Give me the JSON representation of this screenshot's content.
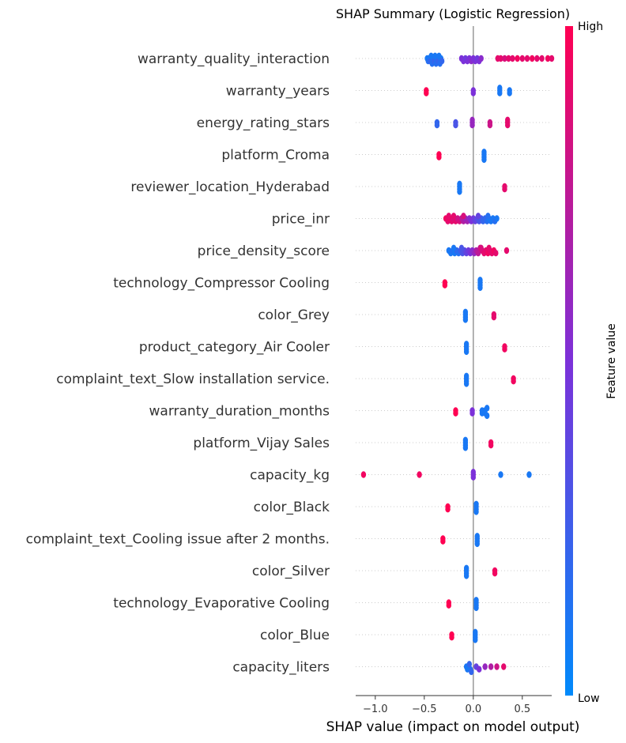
{
  "chart_data": {
    "type": "scatter",
    "title": "SHAP Summary (Logistic Regression)",
    "xlabel": "SHAP value (impact on model output)",
    "xlim": [
      -1.2,
      0.8
    ],
    "xticks": [
      "−1.0",
      "−0.5",
      "0.0",
      "0.5"
    ],
    "xtick_values": [
      -1.0,
      -0.5,
      0.0,
      0.5
    ],
    "colorbar": {
      "label": "Feature value",
      "high": "High",
      "low": "Low",
      "low_color": "#008afb",
      "mid_color": "#7c31d9",
      "high_color": "#ff0052"
    },
    "features": [
      {
        "name": "warranty_quality_interaction",
        "points": [
          [
            -0.47,
            0.1
          ],
          [
            -0.46,
            0.15
          ],
          [
            -0.45,
            0.1
          ],
          [
            -0.44,
            0.2
          ],
          [
            -0.43,
            0.1
          ],
          [
            -0.42,
            0.15
          ],
          [
            -0.41,
            0.1
          ],
          [
            -0.4,
            0.2
          ],
          [
            -0.39,
            0.1
          ],
          [
            -0.38,
            0.15
          ],
          [
            -0.37,
            0.1
          ],
          [
            -0.36,
            0.2
          ],
          [
            -0.35,
            0.1
          ],
          [
            -0.34,
            0.15
          ],
          [
            -0.33,
            0.1
          ],
          [
            -0.32,
            0.2
          ],
          [
            -0.12,
            0.5
          ],
          [
            -0.1,
            0.5
          ],
          [
            -0.08,
            0.45
          ],
          [
            -0.06,
            0.5
          ],
          [
            -0.04,
            0.5
          ],
          [
            -0.02,
            0.55
          ],
          [
            0.0,
            0.5
          ],
          [
            0.02,
            0.5
          ],
          [
            0.04,
            0.45
          ],
          [
            0.06,
            0.5
          ],
          [
            0.08,
            0.55
          ],
          [
            0.25,
            0.9
          ],
          [
            0.28,
            0.9
          ],
          [
            0.32,
            0.85
          ],
          [
            0.36,
            0.9
          ],
          [
            0.4,
            0.9
          ],
          [
            0.45,
            0.95
          ],
          [
            0.5,
            0.9
          ],
          [
            0.55,
            0.9
          ],
          [
            0.6,
            0.95
          ],
          [
            0.65,
            0.9
          ],
          [
            0.7,
            0.9
          ],
          [
            0.76,
            0.95
          ],
          [
            0.8,
            0.9
          ]
        ]
      },
      {
        "name": "warranty_years",
        "points": [
          [
            -0.48,
            1.0
          ],
          [
            -0.48,
            1.0
          ],
          [
            0.0,
            0.5
          ],
          [
            0.0,
            0.5
          ],
          [
            0.27,
            0.1
          ],
          [
            0.27,
            0.1
          ],
          [
            0.27,
            0.1
          ],
          [
            0.37,
            0.1
          ],
          [
            0.37,
            0.1
          ]
        ]
      },
      {
        "name": "energy_rating_stars",
        "points": [
          [
            -0.37,
            0.2
          ],
          [
            -0.37,
            0.2
          ],
          [
            -0.18,
            0.3
          ],
          [
            -0.18,
            0.3
          ],
          [
            -0.01,
            0.6
          ],
          [
            -0.01,
            0.6
          ],
          [
            -0.01,
            0.6
          ],
          [
            0.17,
            0.8
          ],
          [
            0.17,
            0.8
          ],
          [
            0.35,
            0.9
          ],
          [
            0.35,
            0.9
          ],
          [
            0.35,
            0.9
          ]
        ]
      },
      {
        "name": "platform_Croma",
        "points": [
          [
            -0.35,
            1.0
          ],
          [
            -0.35,
            1.0
          ],
          [
            0.11,
            0.1
          ],
          [
            0.11,
            0.1
          ],
          [
            0.11,
            0.1
          ],
          [
            0.11,
            0.1
          ]
        ]
      },
      {
        "name": "reviewer_location_Hyderabad",
        "points": [
          [
            -0.14,
            0.1
          ],
          [
            -0.14,
            0.1
          ],
          [
            -0.14,
            0.1
          ],
          [
            -0.14,
            0.1
          ],
          [
            0.32,
            0.9
          ],
          [
            0.32,
            0.9
          ]
        ]
      },
      {
        "name": "price_inr",
        "points": [
          [
            -0.28,
            0.95
          ],
          [
            -0.26,
            0.9
          ],
          [
            -0.24,
            0.95
          ],
          [
            -0.22,
            0.9
          ],
          [
            -0.2,
            0.85
          ],
          [
            -0.18,
            0.9
          ],
          [
            -0.16,
            0.8
          ],
          [
            -0.14,
            0.85
          ],
          [
            -0.12,
            0.75
          ],
          [
            -0.1,
            0.7
          ],
          [
            -0.08,
            0.6
          ],
          [
            -0.06,
            0.65
          ],
          [
            -0.04,
            0.55
          ],
          [
            -0.02,
            0.5
          ],
          [
            0.0,
            0.45
          ],
          [
            0.02,
            0.4
          ],
          [
            0.04,
            0.35
          ],
          [
            0.06,
            0.3
          ],
          [
            0.08,
            0.25
          ],
          [
            0.1,
            0.2
          ],
          [
            0.12,
            0.2
          ],
          [
            0.14,
            0.15
          ],
          [
            0.16,
            0.1
          ],
          [
            0.18,
            0.1
          ],
          [
            0.2,
            0.1
          ],
          [
            0.22,
            0.15
          ],
          [
            0.24,
            0.1
          ],
          [
            -0.2,
            0.9
          ],
          [
            -0.1,
            0.85
          ],
          [
            0.05,
            0.4
          ],
          [
            0.15,
            0.15
          ],
          [
            -0.25,
            0.9
          ]
        ]
      },
      {
        "name": "price_density_score",
        "points": [
          [
            -0.25,
            0.1
          ],
          [
            -0.23,
            0.1
          ],
          [
            -0.21,
            0.15
          ],
          [
            -0.19,
            0.1
          ],
          [
            -0.17,
            0.2
          ],
          [
            -0.15,
            0.15
          ],
          [
            -0.13,
            0.25
          ],
          [
            -0.11,
            0.3
          ],
          [
            -0.09,
            0.35
          ],
          [
            -0.07,
            0.4
          ],
          [
            -0.05,
            0.45
          ],
          [
            -0.03,
            0.5
          ],
          [
            -0.01,
            0.55
          ],
          [
            0.01,
            0.6
          ],
          [
            0.03,
            0.7
          ],
          [
            0.05,
            0.75
          ],
          [
            0.07,
            0.8
          ],
          [
            0.09,
            0.85
          ],
          [
            0.11,
            0.9
          ],
          [
            0.13,
            0.9
          ],
          [
            0.15,
            0.95
          ],
          [
            0.17,
            0.9
          ],
          [
            0.19,
            0.9
          ],
          [
            0.21,
            0.95
          ],
          [
            0.23,
            0.9
          ],
          [
            0.34,
            0.9
          ],
          [
            -0.2,
            0.1
          ],
          [
            0.08,
            0.85
          ],
          [
            0.16,
            0.9
          ],
          [
            -0.12,
            0.3
          ]
        ]
      },
      {
        "name": "technology_Compressor Cooling",
        "points": [
          [
            -0.29,
            1.0
          ],
          [
            -0.29,
            1.0
          ],
          [
            0.07,
            0.1
          ],
          [
            0.07,
            0.1
          ],
          [
            0.07,
            0.1
          ],
          [
            0.07,
            0.1
          ]
        ]
      },
      {
        "name": "color_Grey",
        "points": [
          [
            -0.08,
            0.1
          ],
          [
            -0.08,
            0.1
          ],
          [
            -0.08,
            0.1
          ],
          [
            -0.08,
            0.1
          ],
          [
            0.21,
            0.9
          ],
          [
            0.21,
            0.9
          ]
        ]
      },
      {
        "name": "product_category_Air Cooler",
        "points": [
          [
            -0.07,
            0.1
          ],
          [
            -0.07,
            0.1
          ],
          [
            -0.07,
            0.1
          ],
          [
            -0.07,
            0.1
          ],
          [
            0.32,
            0.95
          ],
          [
            0.32,
            0.95
          ]
        ]
      },
      {
        "name": "complaint_text_Slow installation service.",
        "points": [
          [
            -0.07,
            0.1
          ],
          [
            -0.07,
            0.1
          ],
          [
            -0.07,
            0.1
          ],
          [
            -0.07,
            0.1
          ],
          [
            0.41,
            0.95
          ],
          [
            0.41,
            0.95
          ]
        ]
      },
      {
        "name": "warranty_duration_months",
        "points": [
          [
            -0.18,
            1.0
          ],
          [
            -0.18,
            1.0
          ],
          [
            -0.01,
            0.5
          ],
          [
            -0.01,
            0.5
          ],
          [
            0.09,
            0.1
          ],
          [
            0.09,
            0.1
          ],
          [
            0.12,
            0.1
          ],
          [
            0.12,
            0.1
          ],
          [
            0.14,
            0.1
          ],
          [
            0.14,
            0.1
          ]
        ]
      },
      {
        "name": "platform_Vijay Sales",
        "points": [
          [
            -0.08,
            0.1
          ],
          [
            -0.08,
            0.1
          ],
          [
            -0.08,
            0.1
          ],
          [
            -0.08,
            0.1
          ],
          [
            0.18,
            0.95
          ],
          [
            0.18,
            0.95
          ]
        ]
      },
      {
        "name": "capacity_kg",
        "points": [
          [
            -1.12,
            0.95
          ],
          [
            -0.55,
            0.95
          ],
          [
            0.0,
            0.5
          ],
          [
            0.0,
            0.5
          ],
          [
            0.0,
            0.5
          ],
          [
            0.28,
            0.1
          ],
          [
            0.57,
            0.1
          ]
        ]
      },
      {
        "name": "color_Black",
        "points": [
          [
            -0.26,
            1.0
          ],
          [
            -0.26,
            1.0
          ],
          [
            0.03,
            0.1
          ],
          [
            0.03,
            0.1
          ],
          [
            0.03,
            0.1
          ],
          [
            0.03,
            0.1
          ]
        ]
      },
      {
        "name": "complaint_text_Cooling issue after 2 months.",
        "points": [
          [
            -0.31,
            1.0
          ],
          [
            -0.31,
            1.0
          ],
          [
            0.04,
            0.1
          ],
          [
            0.04,
            0.1
          ],
          [
            0.04,
            0.1
          ],
          [
            0.04,
            0.1
          ]
        ]
      },
      {
        "name": "color_Silver",
        "points": [
          [
            -0.07,
            0.1
          ],
          [
            -0.07,
            0.1
          ],
          [
            -0.07,
            0.1
          ],
          [
            -0.07,
            0.1
          ],
          [
            0.22,
            0.95
          ],
          [
            0.22,
            0.95
          ]
        ]
      },
      {
        "name": "technology_Evaporative Cooling",
        "points": [
          [
            -0.25,
            1.0
          ],
          [
            -0.25,
            1.0
          ],
          [
            0.03,
            0.1
          ],
          [
            0.03,
            0.1
          ],
          [
            0.03,
            0.1
          ],
          [
            0.03,
            0.1
          ]
        ]
      },
      {
        "name": "color_Blue",
        "points": [
          [
            -0.22,
            1.0
          ],
          [
            -0.22,
            1.0
          ],
          [
            0.02,
            0.1
          ],
          [
            0.02,
            0.1
          ],
          [
            0.02,
            0.1
          ],
          [
            0.02,
            0.1
          ]
        ]
      },
      {
        "name": "capacity_liters",
        "points": [
          [
            -0.07,
            0.1
          ],
          [
            -0.05,
            0.1
          ],
          [
            -0.03,
            0.15
          ],
          [
            -0.06,
            0.1
          ],
          [
            -0.04,
            0.2
          ],
          [
            -0.02,
            0.2
          ],
          [
            0.03,
            0.4
          ],
          [
            0.06,
            0.5
          ],
          [
            0.12,
            0.6
          ],
          [
            0.18,
            0.7
          ],
          [
            0.24,
            0.8
          ],
          [
            0.31,
            0.9
          ]
        ]
      }
    ]
  }
}
